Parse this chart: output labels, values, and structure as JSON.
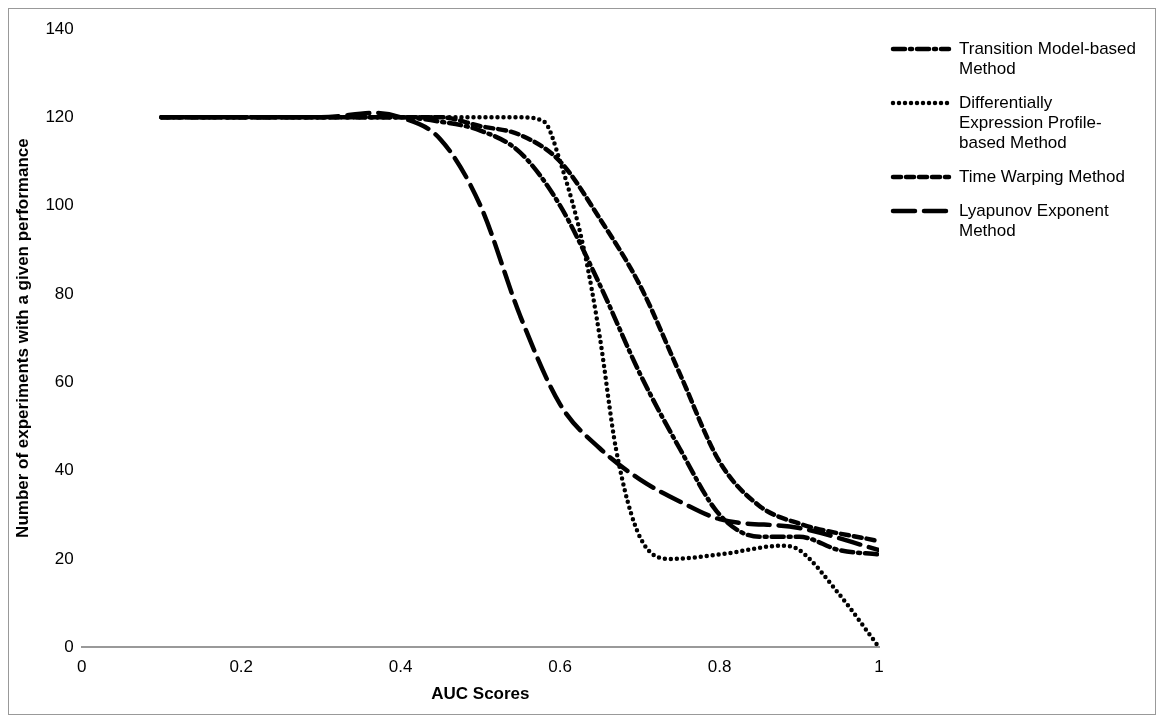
{
  "chart_data": {
    "type": "line",
    "xlabel": "AUC Scores",
    "ylabel": "Number of experiments with a given performance",
    "xlim": [
      0,
      1
    ],
    "xticks": [
      0,
      0.2,
      0.4,
      0.6,
      0.8,
      1
    ],
    "ylim": [
      0,
      140
    ],
    "yticks": [
      0,
      20,
      40,
      60,
      80,
      100,
      120,
      140
    ],
    "grid": false,
    "legend": "right",
    "marker": "none",
    "series": [
      {
        "name": "Transition Model-based Method",
        "color": "#000000",
        "line_style": "dashed",
        "x": [
          0.1,
          0.2,
          0.3,
          0.4,
          0.45,
          0.5,
          0.55,
          0.6,
          0.65,
          0.7,
          0.75,
          0.8,
          0.85,
          0.9,
          0.95,
          1
        ],
        "values": [
          120,
          120,
          120,
          120,
          119,
          117,
          112,
          100,
          82,
          62,
          45,
          30,
          25,
          25,
          22,
          21
        ]
      },
      {
        "name": "Differentially Expression Profile-based Method",
        "color": "#000000",
        "line_style": "dotted",
        "x": [
          0.1,
          0.2,
          0.3,
          0.4,
          0.5,
          0.55,
          0.58,
          0.6,
          0.63,
          0.65,
          0.67,
          0.7,
          0.74,
          0.8,
          0.88,
          0.9,
          0.95,
          1
        ],
        "values": [
          120,
          120,
          120,
          120,
          120,
          120,
          119,
          110,
          90,
          70,
          45,
          25,
          20,
          21,
          23,
          22,
          12,
          0
        ]
      },
      {
        "name": "Time Warping Method",
        "color": "#000000",
        "line_style": "dashed",
        "x": [
          0.1,
          0.2,
          0.3,
          0.4,
          0.45,
          0.5,
          0.55,
          0.6,
          0.65,
          0.7,
          0.75,
          0.8,
          0.85,
          0.9,
          1
        ],
        "values": [
          120,
          120,
          120,
          120,
          120,
          118,
          116,
          110,
          97,
          82,
          62,
          42,
          32,
          28,
          24
        ]
      },
      {
        "name": "Lyapunov Exponent Method",
        "color": "#000000",
        "line_style": "dashed",
        "x": [
          0.1,
          0.2,
          0.3,
          0.37,
          0.4,
          0.45,
          0.5,
          0.55,
          0.6,
          0.65,
          0.7,
          0.75,
          0.8,
          0.9,
          1
        ],
        "values": [
          120,
          120,
          120,
          121,
          120,
          115,
          100,
          75,
          55,
          45,
          38,
          33,
          29,
          27,
          22
        ]
      }
    ]
  }
}
